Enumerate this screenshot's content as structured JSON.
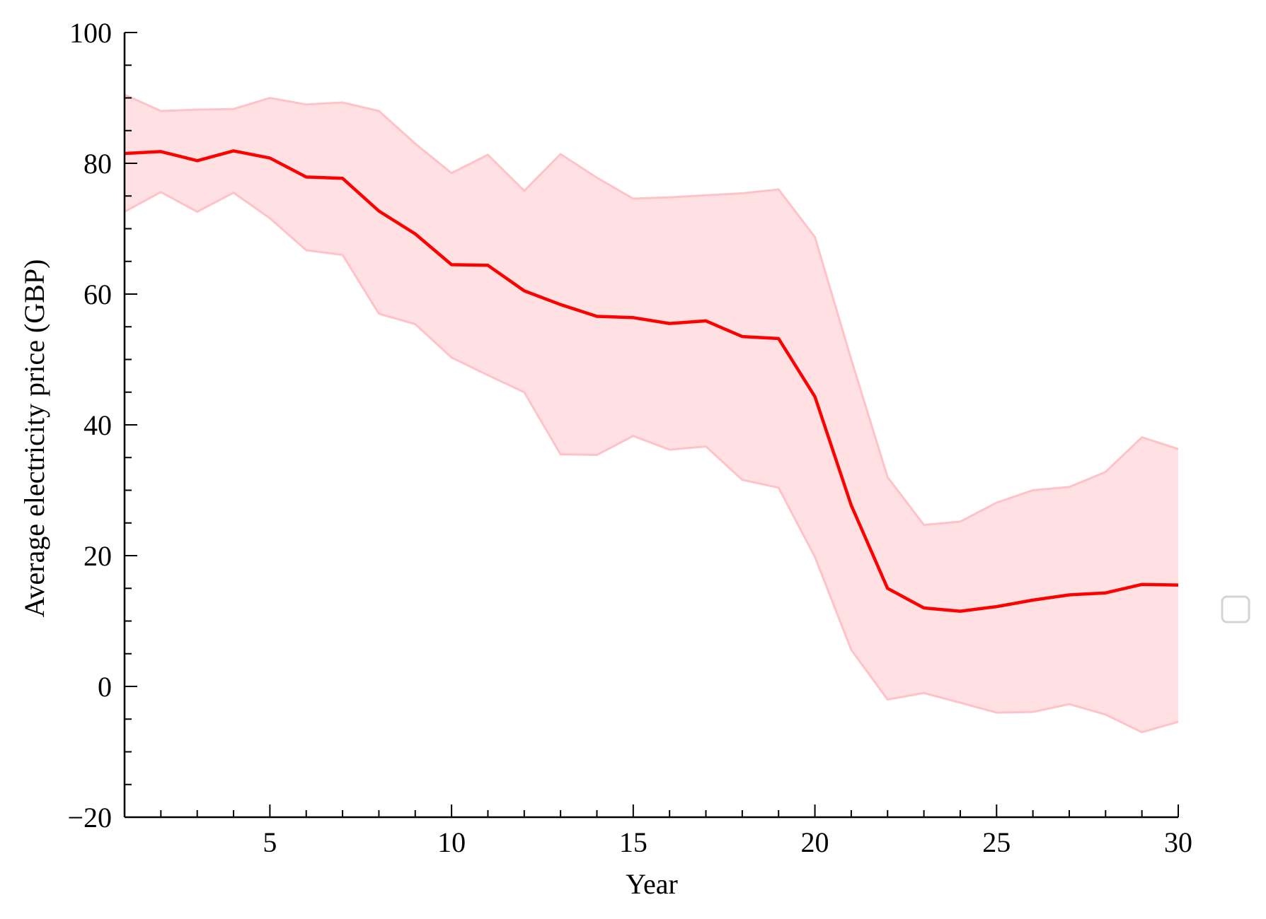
{
  "chart_data": {
    "type": "line",
    "xlabel": "Year",
    "ylabel": "Average electricity price (GBP)",
    "xlim": [
      1,
      30
    ],
    "ylim": [
      -20,
      100
    ],
    "x_ticks": [
      5,
      10,
      15,
      20,
      25,
      30
    ],
    "y_ticks": [
      -20,
      0,
      20,
      40,
      60,
      80,
      100
    ],
    "x_minor_step": 1,
    "y_minor_step": 5,
    "grid": false,
    "legend": "right (empty)",
    "colors": {
      "line": "#ff0000",
      "band_fill": "#ffe0e3",
      "band_edge": "#ffc2c6",
      "axis": "#000000"
    },
    "x": [
      1,
      2,
      3,
      4,
      5,
      6,
      7,
      8,
      9,
      10,
      11,
      12,
      13,
      14,
      15,
      16,
      17,
      18,
      19,
      20,
      21,
      22,
      23,
      24,
      25,
      26,
      27,
      28,
      29,
      30
    ],
    "series": [
      {
        "role": "mean",
        "values": [
          81.5,
          81.8,
          80.4,
          81.9,
          80.8,
          77.9,
          77.7,
          72.7,
          69.2,
          64.5,
          64.4,
          60.5,
          58.4,
          56.6,
          56.4,
          55.5,
          55.9,
          53.5,
          53.2,
          44.3,
          27.7,
          15.0,
          12.0,
          11.5,
          12.2,
          13.2,
          14.0,
          14.3,
          15.6,
          15.5
        ]
      },
      {
        "role": "upper",
        "values": [
          90.5,
          88.0,
          88.2,
          88.3,
          90.0,
          89.0,
          89.3,
          88.0,
          83.0,
          78.5,
          81.3,
          75.8,
          81.4,
          77.8,
          74.6,
          74.8,
          75.1,
          75.4,
          76.0,
          68.7,
          50.0,
          32.0,
          24.7,
          25.2,
          28.1,
          30.0,
          30.5,
          32.8,
          38.1,
          36.3
        ]
      },
      {
        "role": "lower",
        "values": [
          72.6,
          75.6,
          72.6,
          75.5,
          71.6,
          66.7,
          66.0,
          57.0,
          55.4,
          50.3,
          47.6,
          45.0,
          35.5,
          35.4,
          38.3,
          36.2,
          36.7,
          31.6,
          30.4,
          19.8,
          5.6,
          -2.0,
          -1.0,
          -2.5,
          -4.0,
          -3.9,
          -2.7,
          -4.3,
          -7.0,
          -5.4
        ]
      }
    ]
  }
}
